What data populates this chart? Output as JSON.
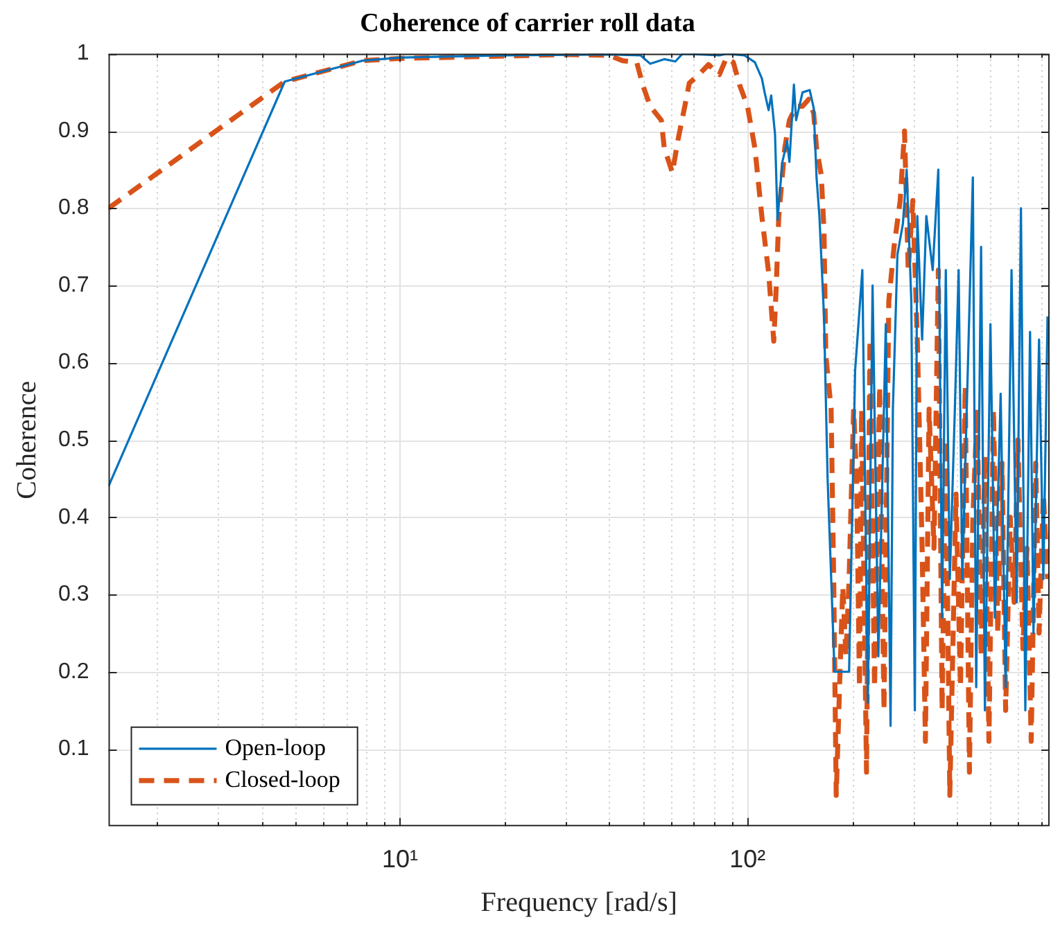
{
  "chart_data": {
    "type": "line",
    "title": "Coherence of carrier roll data",
    "xlabel": "Frequency [rad/s]",
    "ylabel": "Coherence",
    "log": "x",
    "grid": true,
    "legend": "bottom left",
    "marker": "none",
    "xlim": [
      1.45,
      740
    ],
    "xticks": [
      {
        "value": 2,
        "label": null
      },
      {
        "value": 3,
        "label": null
      },
      {
        "value": 4,
        "label": null
      },
      {
        "value": 5,
        "label": null
      },
      {
        "value": 6,
        "label": null
      },
      {
        "value": 7,
        "label": null
      },
      {
        "value": 8,
        "label": null
      },
      {
        "value": 9,
        "label": null
      },
      {
        "value": 10,
        "label": "10¹"
      },
      {
        "value": 20,
        "label": null
      },
      {
        "value": 30,
        "label": null
      },
      {
        "value": 40,
        "label": null
      },
      {
        "value": 50,
        "label": null
      },
      {
        "value": 60,
        "label": null
      },
      {
        "value": 70,
        "label": null
      },
      {
        "value": 80,
        "label": null
      },
      {
        "value": 90,
        "label": null
      },
      {
        "value": 100,
        "label": "10²"
      },
      {
        "value": 200,
        "label": null
      },
      {
        "value": 300,
        "label": null
      },
      {
        "value": 400,
        "label": null
      },
      {
        "value": 500,
        "label": null
      },
      {
        "value": 600,
        "label": null
      },
      {
        "value": 700,
        "label": null
      }
    ],
    "ylim": [
      0,
      1
    ],
    "yticks": [
      0.1,
      0.2,
      0.3,
      0.4,
      0.5,
      0.6,
      0.7,
      0.8,
      0.9,
      1
    ],
    "series": [
      {
        "name": "Open-loop",
        "color": "#0072bd",
        "line_style": "solid",
        "x": [
          1.45,
          4.66,
          7.8,
          10,
          20,
          40,
          49.2,
          52.5,
          57.6,
          62,
          65,
          83,
          87,
          98,
          105,
          110,
          112,
          115,
          117,
          120,
          122,
          126,
          130,
          132,
          136,
          138,
          144,
          151,
          155,
          158,
          161,
          166,
          170,
          178,
          196,
          204,
          214,
          222,
          229,
          238,
          250,
          258,
          262,
          270,
          280,
          287,
          296,
          303,
          308,
          318,
          327,
          341,
          354,
          363,
          372,
          382,
          395,
          405,
          415,
          445,
          455,
          470,
          482,
          500,
          515,
          535,
          553,
          575,
          595,
          612,
          630,
          650,
          665,
          690,
          710,
          730
        ],
        "values": [
          0.44,
          0.964,
          0.991,
          0.995,
          0.998,
          0.999,
          0.998,
          0.987,
          0.993,
          0.99,
          1,
          0.998,
          1,
          0.998,
          0.989,
          0.968,
          0.95,
          0.927,
          0.946,
          0.896,
          0.785,
          0.86,
          0.887,
          0.86,
          0.96,
          0.914,
          0.95,
          0.953,
          0.93,
          0.84,
          0.79,
          0.66,
          0.45,
          0.2,
          0.2,
          0.59,
          0.72,
          0.16,
          0.7,
          0.22,
          0.65,
          0.13,
          0.54,
          0.74,
          0.78,
          0.85,
          0.68,
          0.15,
          0.79,
          0.63,
          0.79,
          0.72,
          0.85,
          0.27,
          0.72,
          0.32,
          0.54,
          0.72,
          0.32,
          0.84,
          0.18,
          0.75,
          0.15,
          0.65,
          0.27,
          0.56,
          0.18,
          0.72,
          0.29,
          0.8,
          0.15,
          0.64,
          0.25,
          0.63,
          0.32,
          0.66
        ]
      },
      {
        "name": "Closed-loop",
        "color": "#d95319",
        "line_style": "dashed",
        "x": [
          1.45,
          4.66,
          7.8,
          10,
          20,
          30,
          40,
          43.7,
          48,
          50,
          52.5,
          56.5,
          57.6,
          60.8,
          63,
          66,
          68,
          72.5,
          77.2,
          83,
          87,
          91,
          95,
          100,
          105,
          110,
          115,
          119,
          121,
          123,
          126,
          128,
          132,
          138,
          144,
          150,
          155,
          158,
          163,
          166,
          168,
          174,
          177,
          180,
          184,
          188,
          192,
          196,
          202,
          206,
          210,
          213,
          220,
          225,
          232,
          240,
          247,
          255,
          264,
          275,
          283,
          290,
          299,
          308,
          318,
          325,
          333,
          344,
          354,
          363,
          372,
          382,
          398,
          410,
          423,
          435,
          445,
          458,
          470,
          482,
          495,
          510,
          525,
          540,
          553,
          570,
          585,
          600,
          620,
          637,
          655,
          675,
          690,
          710,
          730
        ],
        "values": [
          0.8,
          0.964,
          0.991,
          0.994,
          0.997,
          0.999,
          0.998,
          0.991,
          0.989,
          0.959,
          0.932,
          0.914,
          0.878,
          0.846,
          0.887,
          0.932,
          0.962,
          0.973,
          0.986,
          0.973,
          0.995,
          0.989,
          0.959,
          0.932,
          0.878,
          0.789,
          0.717,
          0.628,
          0.7,
          0.789,
          0.843,
          0.878,
          0.914,
          0.932,
          0.932,
          0.941,
          0.923,
          0.878,
          0.843,
          0.771,
          0.61,
          0.54,
          0.32,
          0.04,
          0.18,
          0.31,
          0.22,
          0.32,
          0.54,
          0.45,
          0.18,
          0.54,
          0.07,
          0.63,
          0.18,
          0.57,
          0.15,
          0.68,
          0.75,
          0.81,
          0.9,
          0.72,
          0.81,
          0.63,
          0.36,
          0.11,
          0.54,
          0.36,
          0.72,
          0.15,
          0.5,
          0.04,
          0.43,
          0.18,
          0.57,
          0.07,
          0.4,
          0.54,
          0.22,
          0.48,
          0.11,
          0.54,
          0.25,
          0.47,
          0.15,
          0.4,
          0.29,
          0.5,
          0.23,
          0.36,
          0.11,
          0.47,
          0.25,
          0.43,
          0.32
        ]
      }
    ]
  }
}
